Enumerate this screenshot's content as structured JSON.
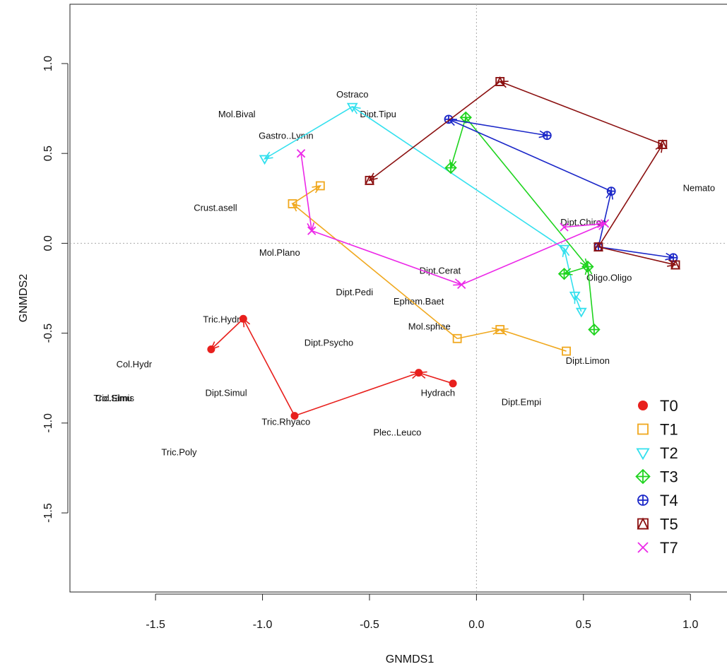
{
  "chart_data": {
    "type": "scatter",
    "title": "",
    "xlabel": "GNMDS1",
    "ylabel": "GNMDS2",
    "xlim": [
      -1.9,
      1.27
    ],
    "ylim": [
      -1.94,
      1.33
    ],
    "xticks": [
      -1.5,
      -1.0,
      -0.5,
      0.0,
      0.5,
      1.0
    ],
    "xtick_labels": [
      "-1.5",
      "-1.0",
      "-0.5",
      "0.0",
      "0.5",
      "1.0"
    ],
    "yticks": [
      -1.5,
      -1.0,
      -0.5,
      0.0,
      0.5,
      1.0
    ],
    "ytick_labels": [
      "-1.5",
      "-1.0",
      "-0.5",
      "0.0",
      "0.5",
      "1.0"
    ],
    "reference_lines": {
      "x": 0,
      "y": 0,
      "style": "dotted"
    },
    "legend_position": "bottom-right",
    "series": [
      {
        "name": "T0",
        "color": "#e8201d",
        "marker": "filled-circle",
        "points": [
          [
            -1.24,
            -0.59
          ],
          [
            -1.09,
            -0.42
          ],
          [
            -0.85,
            -0.96
          ],
          [
            -0.27,
            -0.72
          ],
          [
            -0.11,
            -0.78
          ]
        ],
        "arrows": [
          [
            1,
            0
          ],
          [
            2,
            1
          ],
          [
            2,
            3
          ],
          [
            4,
            3
          ]
        ]
      },
      {
        "name": "T1",
        "color": "#f0a81e",
        "marker": "square",
        "points": [
          [
            -0.73,
            0.32
          ],
          [
            -0.86,
            0.22
          ],
          [
            -0.09,
            -0.53
          ],
          [
            0.11,
            -0.48
          ],
          [
            0.42,
            -0.6
          ]
        ],
        "arrows": [
          [
            1,
            0
          ],
          [
            2,
            1
          ],
          [
            2,
            3
          ],
          [
            4,
            3
          ]
        ]
      },
      {
        "name": "T2",
        "color": "#33e0ee",
        "marker": "triangle-down",
        "points": [
          [
            -0.58,
            0.76
          ],
          [
            -0.99,
            0.47
          ],
          [
            0.41,
            -0.03
          ],
          [
            0.46,
            -0.29
          ],
          [
            0.49,
            -0.38
          ]
        ],
        "arrows": [
          [
            0,
            1
          ],
          [
            2,
            0
          ],
          [
            3,
            2
          ],
          [
            4,
            3
          ]
        ]
      },
      {
        "name": "T3",
        "color": "#1ed41e",
        "marker": "diamond-plus",
        "points": [
          [
            -0.05,
            0.7
          ],
          [
            -0.12,
            0.42
          ],
          [
            0.52,
            -0.13
          ],
          [
            0.41,
            -0.17
          ],
          [
            0.55,
            -0.48
          ]
        ],
        "arrows": [
          [
            0,
            1
          ],
          [
            0,
            2
          ],
          [
            2,
            3
          ],
          [
            4,
            2
          ]
        ]
      },
      {
        "name": "T4",
        "color": "#1a26c8",
        "marker": "circle-plus",
        "points": [
          [
            -0.13,
            0.69
          ],
          [
            0.33,
            0.6
          ],
          [
            0.63,
            0.29
          ],
          [
            0.92,
            -0.08
          ],
          [
            0.57,
            -0.02
          ]
        ],
        "arrows": [
          [
            0,
            1
          ],
          [
            2,
            0
          ],
          [
            4,
            2
          ],
          [
            4,
            3
          ]
        ]
      },
      {
        "name": "T5",
        "color": "#8b1010",
        "marker": "triangle-in-square",
        "points": [
          [
            0.11,
            0.9
          ],
          [
            -0.5,
            0.35
          ],
          [
            0.87,
            0.55
          ],
          [
            0.57,
            -0.02
          ],
          [
            0.93,
            -0.12
          ]
        ],
        "arrows": [
          [
            0,
            1
          ],
          [
            2,
            0
          ],
          [
            3,
            2
          ],
          [
            3,
            4
          ]
        ]
      },
      {
        "name": "T7",
        "color": "#ec28e8",
        "marker": "x",
        "points": [
          [
            -0.82,
            0.5
          ],
          [
            -0.77,
            0.07
          ],
          [
            -0.07,
            -0.23
          ],
          [
            0.6,
            0.11
          ],
          [
            0.41,
            0.09
          ]
        ],
        "arrows": [
          [
            0,
            1
          ],
          [
            1,
            2
          ],
          [
            2,
            3
          ],
          [
            4,
            3
          ]
        ]
      }
    ],
    "species_labels": [
      {
        "text": "Ostraco",
        "x": -0.58,
        "y": 0.83
      },
      {
        "text": "Mol.Bival",
        "x": -1.12,
        "y": 0.72
      },
      {
        "text": "Dipt.Tipu",
        "x": -0.46,
        "y": 0.72
      },
      {
        "text": "Gastro..Lymn",
        "x": -0.89,
        "y": 0.6
      },
      {
        "text": "Nemato",
        "x": 1.04,
        "y": 0.31
      },
      {
        "text": "Crust.asell",
        "x": -1.22,
        "y": 0.2
      },
      {
        "text": "Dipt.Chiron",
        "x": 0.5,
        "y": 0.12
      },
      {
        "text": "Mol.Plano",
        "x": -0.92,
        "y": -0.05
      },
      {
        "text": "Dipt.Cerat",
        "x": -0.17,
        "y": -0.15
      },
      {
        "text": "Oligo.Oligo",
        "x": 0.62,
        "y": -0.19
      },
      {
        "text": "Dipt.Pedi",
        "x": -0.57,
        "y": -0.27
      },
      {
        "text": "Ephem.Baet",
        "x": -0.27,
        "y": -0.32
      },
      {
        "text": "Tric.Hydro",
        "x": -1.18,
        "y": -0.42
      },
      {
        "text": "Mol.sphae",
        "x": -0.22,
        "y": -0.46
      },
      {
        "text": "Dipt.Psycho",
        "x": -0.69,
        "y": -0.55
      },
      {
        "text": "Col.Hydr",
        "x": -1.6,
        "y": -0.67
      },
      {
        "text": "Dipt.Limon",
        "x": 0.52,
        "y": -0.65
      },
      {
        "text": "Tric.Simu",
        "x": -1.7,
        "y": -0.86
      },
      {
        "text": "Col.Elmis",
        "x": -1.69,
        "y": -0.86
      },
      {
        "text": "Dipt.Simul",
        "x": -1.17,
        "y": -0.83
      },
      {
        "text": "Hydrach",
        "x": -0.18,
        "y": -0.83
      },
      {
        "text": "Dipt.Empi",
        "x": 0.21,
        "y": -0.88
      },
      {
        "text": "Tric.Rhyaco",
        "x": -0.89,
        "y": -0.99
      },
      {
        "text": "Plec..Leuco",
        "x": -0.37,
        "y": -1.05
      },
      {
        "text": "Tric.Poly",
        "x": -1.39,
        "y": -1.16
      }
    ]
  }
}
